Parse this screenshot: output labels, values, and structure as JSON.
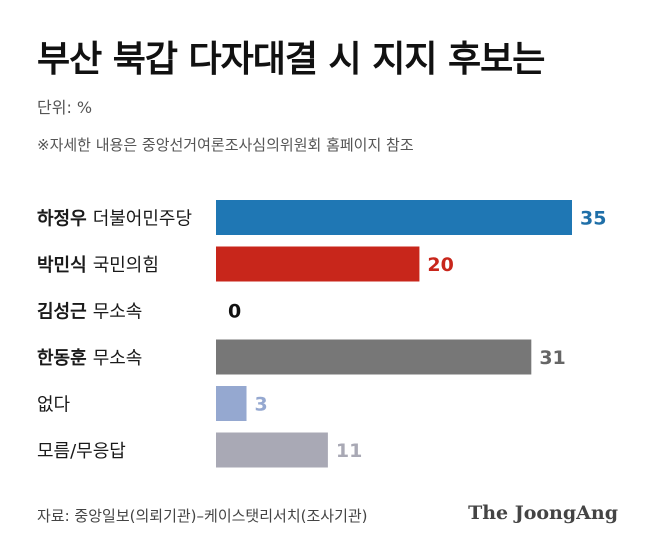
{
  "title": "부산 북갑 다자대결 시 지지 후보는",
  "unit_label": "단위: %",
  "note": "※자세한 내용은 중앙선거여론조사심의위원회 홈페이지 참조",
  "source": "자료: 중앙일보(의뢰기관)–케이스탯리서치(조사기관)",
  "logo": "The JoongAng",
  "chart_data": {
    "type": "bar",
    "orientation": "horizontal",
    "categories": [
      {
        "name": "하정우",
        "party": "더불어민주당"
      },
      {
        "name": "박민식",
        "party": "국민의힘"
      },
      {
        "name": "김성근",
        "party": "무소속"
      },
      {
        "name": "한동훈",
        "party": "무소속"
      },
      {
        "name": "없다",
        "party": ""
      },
      {
        "name": "모름/무응답",
        "party": ""
      }
    ],
    "values": [
      35,
      20,
      0,
      31,
      3,
      11
    ],
    "bar_colors": [
      "#1f77b4",
      "#c8261b",
      "#333333",
      "#777777",
      "#95a8d0",
      "#a9a9b5"
    ],
    "label_colors": [
      "#1f6fa8",
      "#c8261b",
      "#111111",
      "#666666",
      "#95a8d0",
      "#a9a9b5"
    ],
    "xlim": [
      0,
      35
    ]
  }
}
